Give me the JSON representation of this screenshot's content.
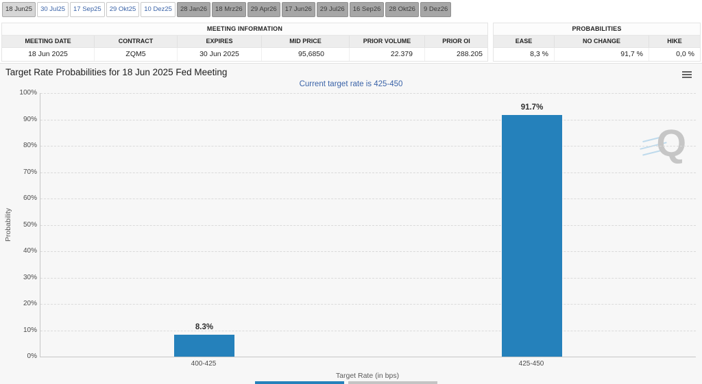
{
  "tabs": {
    "items": [
      {
        "label": "18 Jun25",
        "state": "selected"
      },
      {
        "label": "30 Jul25",
        "state": "link"
      },
      {
        "label": "17 Sep25",
        "state": "link"
      },
      {
        "label": "29 Okt25",
        "state": "link"
      },
      {
        "label": "10 Dez25",
        "state": "link"
      },
      {
        "label": "28 Jan26",
        "state": "disabled"
      },
      {
        "label": "18 Mrz26",
        "state": "disabled"
      },
      {
        "label": "29 Apr26",
        "state": "disabled"
      },
      {
        "label": "17 Jun26",
        "state": "disabled"
      },
      {
        "label": "29 Jul26",
        "state": "disabled"
      },
      {
        "label": "16 Sep26",
        "state": "disabled"
      },
      {
        "label": "28 Okt26",
        "state": "disabled"
      },
      {
        "label": "9 Dez26",
        "state": "disabled"
      }
    ]
  },
  "meeting_info": {
    "title": "MEETING INFORMATION",
    "columns": [
      "MEETING DATE",
      "CONTRACT",
      "EXPIRES",
      "MID PRICE",
      "PRIOR VOLUME",
      "PRIOR OI"
    ],
    "row": [
      "18 Jun 2025",
      "ZQM5",
      "30 Jun 2025",
      "95,6850",
      "22.379",
      "288.205"
    ]
  },
  "probabilities": {
    "title": "PROBABILITIES",
    "columns": [
      "EASE",
      "NO CHANGE",
      "HIKE"
    ],
    "row": [
      "8,3 %",
      "91,7 %",
      "0,0 %"
    ]
  },
  "chart": {
    "title": "Target Rate Probabilities for 18 Jun 2025 Fed Meeting",
    "subtitle": "Current target rate is 425-450",
    "watermark": "Q"
  },
  "chart_data": {
    "type": "bar",
    "title": "Target Rate Probabilities for 18 Jun 2025 Fed Meeting",
    "subtitle": "Current target rate is 425-450",
    "categories": [
      "400-425",
      "425-450"
    ],
    "values": [
      8.3,
      91.7
    ],
    "value_labels": [
      "8.3%",
      "91.7%"
    ],
    "xlabel": "Target Rate (in bps)",
    "ylabel": "Probability",
    "ylim": [
      0,
      100
    ],
    "ytick_step": 10,
    "ytick_suffix": "%",
    "bar_color": "#2581bb",
    "grid": "dashed-horizontal",
    "legend": "none"
  },
  "colors": {
    "bar_blue": "#2581bb",
    "subtitle_blue": "#3a63a8",
    "tab_link_blue": "#3a63a8",
    "panel_bg": "#f7f7f7"
  }
}
